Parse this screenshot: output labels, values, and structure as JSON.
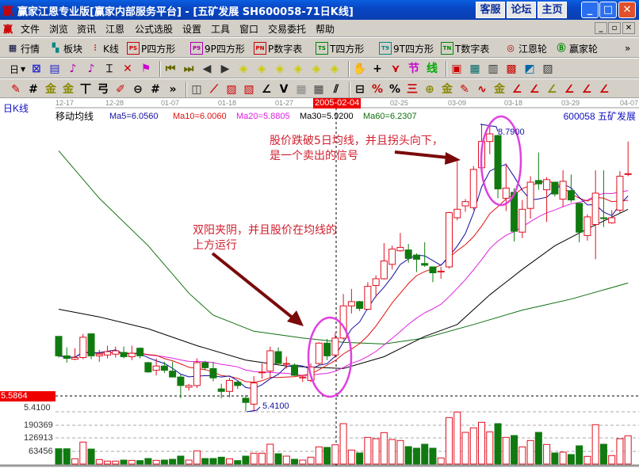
{
  "window": {
    "title": "赢家江恩专业版[赢家内部服务平台] - [五矿发展   SH600058-71日K线]",
    "buttons": [
      "客服",
      "论坛",
      "主页"
    ]
  },
  "menu": {
    "items": [
      "文件",
      "浏览",
      "资讯",
      "江恩",
      "公式选股",
      "设置",
      "工具",
      "窗口",
      "交易委托",
      "帮助"
    ]
  },
  "toolbar1": {
    "items": [
      {
        "icon": "quotes-table-icon",
        "label": "行情"
      },
      {
        "icon": "sector-blocks-icon",
        "label": "板块"
      },
      {
        "icon": "kline-icon",
        "label": "K线"
      },
      {
        "icon": "ps-icon",
        "label": "P四方形"
      },
      {
        "icon": "p9-icon",
        "label": "9P四方形"
      },
      {
        "icon": "pn-icon",
        "label": "P数字表"
      },
      {
        "icon": "ts-icon",
        "label": "T四方形"
      },
      {
        "icon": "t9-icon",
        "label": "9T四方形"
      },
      {
        "icon": "tn-icon",
        "label": "T数字表"
      },
      {
        "icon": "gann-wheel-icon",
        "label": "江恩轮"
      },
      {
        "icon": "big-wheel-icon",
        "label": "赢家轮"
      }
    ],
    "more": "»"
  },
  "toolbar2": {
    "period": "日"
  },
  "chart": {
    "period_label": "日K线",
    "indicator_label": "移动均线",
    "ma_labels": [
      {
        "text": "Ma5=6.0560",
        "color": "#1010a0"
      },
      {
        "text": "Ma10=6.0060",
        "color": "#e01010"
      },
      {
        "text": "Ma20=5.8805",
        "color": "#e020e0"
      },
      {
        "text": "Ma30=5.9200",
        "color": "#000000"
      },
      {
        "text": "Ma60=6.2307",
        "color": "#107010"
      }
    ],
    "stock": "600058 五矿发展",
    "dates": [
      "12-17",
      "12-28",
      "01-07",
      "01-18",
      "01-27",
      "02-25",
      "03-09",
      "03-18",
      "03-29",
      "04-07"
    ],
    "cursor_date": "2005-02-04",
    "current_price": "5.5864",
    "low_axis_label": "5.4100",
    "high_label": "8.7900",
    "low_label": "5.4100",
    "volume_ticks": [
      "190369",
      "126913",
      "63456"
    ],
    "annotation_sell": [
      "股价跌破5日均线，并且拐头向下，",
      "是一个卖出的信号"
    ],
    "annotation_buy": [
      "双阳夹阴，并且股价在均线的",
      "上方运行"
    ],
    "colors": {
      "up": "#e01020",
      "down": "#107a10",
      "ma5": "#1010a0",
      "ma10": "#e01010",
      "ma20": "#e020e0",
      "ma30": "#000000",
      "ma60": "#107010",
      "highlight": "#e040e0",
      "arrow": "#7a0a0a"
    }
  },
  "chart_data": {
    "type": "candlestick",
    "candles_ohlc": [
      [
        6.3,
        6.3,
        6.05,
        6.07
      ],
      [
        6.07,
        6.17,
        5.99,
        6.04
      ],
      [
        6.03,
        6.16,
        6.02,
        6.05
      ],
      [
        6.05,
        6.33,
        6.03,
        6.29
      ],
      [
        6.33,
        6.33,
        6.03,
        6.07
      ],
      [
        6.07,
        6.14,
        6.0,
        6.09
      ],
      [
        6.08,
        6.19,
        6.04,
        6.12
      ],
      [
        6.09,
        6.18,
        6.05,
        6.13
      ],
      [
        6.11,
        6.18,
        6.04,
        6.06
      ],
      [
        6.06,
        6.19,
        6.02,
        6.1
      ],
      [
        6.16,
        6.17,
        6.04,
        6.07
      ],
      [
        5.99,
        6.0,
        5.87,
        5.88
      ],
      [
        5.9,
        6.04,
        5.84,
        5.95
      ],
      [
        5.95,
        6.0,
        5.87,
        5.9
      ],
      [
        5.89,
        6.0,
        5.83,
        5.82
      ],
      [
        5.82,
        5.85,
        5.57,
        5.72
      ],
      [
        5.7,
        5.74,
        5.66,
        5.72
      ],
      [
        5.72,
        6.04,
        5.69,
        5.99
      ],
      [
        5.99,
        6.01,
        5.9,
        5.93
      ],
      [
        5.92,
        6.0,
        5.77,
        5.81
      ],
      [
        5.68,
        5.74,
        5.57,
        5.65
      ],
      [
        5.65,
        5.81,
        5.58,
        5.78
      ],
      [
        5.76,
        5.78,
        5.68,
        5.72
      ],
      [
        5.57,
        5.61,
        5.42,
        5.52
      ],
      [
        5.5,
        5.83,
        5.41,
        5.75
      ],
      [
        5.87,
        5.98,
        5.8,
        5.88
      ],
      [
        5.89,
        6.18,
        5.82,
        6.13
      ],
      [
        6.12,
        6.17,
        5.98,
        5.98
      ],
      [
        5.97,
        6.06,
        5.92,
        5.98
      ],
      [
        5.96,
        5.98,
        5.83,
        5.84
      ],
      [
        5.81,
        5.84,
        5.76,
        5.82
      ],
      [
        5.78,
        5.98,
        5.76,
        5.94
      ],
      [
        5.98,
        6.23,
        5.96,
        6.22
      ],
      [
        6.22,
        6.27,
        6.02,
        6.07
      ],
      [
        6.08,
        6.34,
        6.05,
        6.28
      ],
      [
        6.28,
        6.8,
        6.26,
        6.66
      ],
      [
        6.66,
        6.86,
        6.57,
        6.71
      ],
      [
        6.71,
        6.72,
        6.6,
        6.63
      ],
      [
        6.62,
        6.94,
        6.61,
        6.89
      ],
      [
        6.9,
        7.02,
        6.76,
        6.98
      ],
      [
        6.98,
        7.4,
        6.97,
        7.19
      ],
      [
        7.15,
        7.37,
        7.09,
        7.33
      ],
      [
        7.31,
        7.52,
        7.3,
        7.35
      ],
      [
        7.32,
        7.39,
        7.17,
        7.22
      ],
      [
        7.26,
        7.28,
        7.06,
        7.21
      ],
      [
        7.16,
        7.41,
        7.12,
        7.14
      ],
      [
        7.12,
        7.12,
        6.94,
        7.05
      ],
      [
        7.06,
        7.12,
        6.98,
        7.07
      ],
      [
        7.12,
        7.77,
        7.1,
        7.76
      ],
      [
        7.7,
        8.37,
        7.67,
        7.8
      ],
      [
        7.84,
        7.92,
        7.77,
        7.89
      ],
      [
        7.82,
        8.31,
        7.79,
        8.27
      ],
      [
        8.29,
        8.81,
        8.25,
        8.6
      ],
      [
        8.6,
        8.79,
        8.45,
        8.69
      ],
      [
        8.67,
        8.68,
        7.93,
        8.04
      ],
      [
        7.93,
        8.34,
        7.78,
        8.05
      ],
      [
        8.0,
        8.05,
        7.42,
        7.54
      ],
      [
        7.53,
        7.91,
        7.46,
        7.8
      ],
      [
        7.81,
        8.19,
        7.69,
        8.12
      ],
      [
        8.14,
        8.47,
        8.03,
        8.1
      ],
      [
        8.03,
        8.18,
        7.65,
        8.15
      ],
      [
        8.12,
        8.12,
        7.95,
        7.98
      ],
      [
        7.92,
        8.26,
        7.83,
        8.13
      ],
      [
        8.02,
        8.21,
        7.88,
        7.91
      ],
      [
        7.87,
        7.87,
        7.41,
        7.53
      ],
      [
        7.49,
        7.74,
        7.43,
        7.71
      ],
      [
        7.62,
        8.26,
        7.21,
        7.99
      ],
      [
        7.7,
        8.26,
        7.59,
        7.69
      ],
      [
        7.64,
        7.79,
        7.63,
        7.7
      ],
      [
        7.79,
        8.25,
        7.76,
        8.19
      ],
      [
        8.22,
        8.6,
        8.19,
        8.22
      ]
    ],
    "volumes": [
      76600,
      76600,
      26600,
      110000,
      75000,
      22600,
      14700,
      14700,
      19800,
      18500,
      17200,
      27700,
      18500,
      19800,
      23800,
      39700,
      19800,
      66100,
      27700,
      27700,
      34400,
      26400,
      17200,
      39700,
      54200,
      54200,
      99200,
      51600,
      39700,
      23800,
      19800,
      34400,
      86000,
      83300,
      96400,
      202300,
      70200,
      55500,
      133600,
      126900,
      157400,
      123000,
      117800,
      87300,
      79300,
      99200,
      79300,
      30500,
      232800,
      260600,
      158600,
      181200,
      209000,
      161400,
      202300,
      133600,
      142800,
      86000,
      117800,
      158600,
      98000,
      55500,
      59500,
      47600,
      91200,
      38500,
      197100,
      99200,
      42400,
      126900,
      141600
    ],
    "ma30_points": [
      [
        0,
        6.62
      ],
      [
        5,
        6.53
      ],
      [
        11,
        6.39
      ],
      [
        17,
        6.19
      ],
      [
        23,
        6.02
      ],
      [
        28,
        5.95
      ],
      [
        35,
        5.92
      ],
      [
        40,
        6.06
      ],
      [
        45,
        6.3
      ],
      [
        49,
        6.44
      ],
      [
        53,
        6.79
      ],
      [
        57,
        7.09
      ],
      [
        61,
        7.37
      ],
      [
        65,
        7.57
      ],
      [
        70,
        7.8
      ]
    ],
    "ma60_points": [
      [
        0,
        8.49
      ],
      [
        5,
        7.93
      ],
      [
        11,
        7.37
      ],
      [
        16,
        6.81
      ],
      [
        19,
        6.55
      ],
      [
        24,
        6.36
      ],
      [
        30,
        6.28
      ],
      [
        35,
        6.23
      ],
      [
        40,
        6.21
      ],
      [
        45,
        6.28
      ],
      [
        51,
        6.44
      ],
      [
        57,
        6.61
      ],
      [
        63,
        6.74
      ],
      [
        70,
        6.93
      ]
    ],
    "price_range": [
      5.41,
      8.79
    ],
    "grid": "dashed horizontal"
  }
}
